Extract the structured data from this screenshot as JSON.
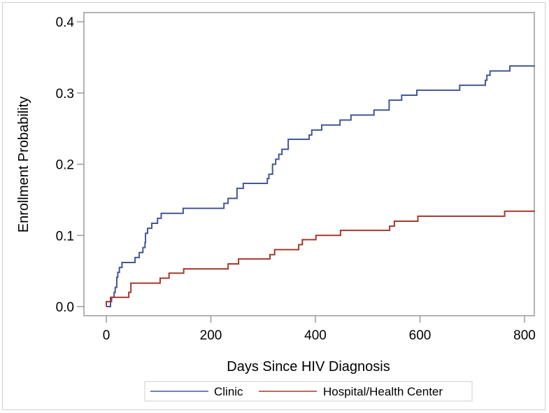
{
  "chart_data": {
    "type": "line",
    "step": true,
    "title": "",
    "xlabel": "Days Since HIV Diagnosis",
    "ylabel": "Enrollment Probability",
    "xlim": [
      -25,
      820
    ],
    "ylim": [
      -0.013,
      0.41
    ],
    "xticks": [
      0,
      200,
      400,
      600,
      800
    ],
    "xtick_labels": [
      "0",
      "200",
      "400",
      "600",
      "800"
    ],
    "yticks": [
      0.0,
      0.1,
      0.2,
      0.3,
      0.4
    ],
    "ytick_labels": [
      "0.0",
      "0.1",
      "0.2",
      "0.3",
      "0.4"
    ],
    "grid": false,
    "legend_position": "bottom",
    "series": [
      {
        "name": "Clinic",
        "color": "#445694",
        "x": [
          0,
          8,
          10,
          15,
          17,
          20,
          22,
          25,
          30,
          55,
          63,
          70,
          74,
          75,
          79,
          87,
          98,
          105,
          147,
          225,
          233,
          250,
          262,
          308,
          311,
          318,
          324,
          330,
          336,
          348,
          388,
          393,
          412,
          447,
          468,
          512,
          541,
          565,
          594,
          676,
          725,
          728,
          734,
          772,
          820
        ],
        "y": [
          0,
          0.007,
          0.013,
          0.02,
          0.027,
          0.041,
          0.048,
          0.055,
          0.062,
          0.069,
          0.076,
          0.083,
          0.09,
          0.103,
          0.11,
          0.117,
          0.124,
          0.131,
          0.138,
          0.145,
          0.152,
          0.166,
          0.173,
          0.18,
          0.186,
          0.2,
          0.207,
          0.214,
          0.221,
          0.235,
          0.241,
          0.248,
          0.255,
          0.262,
          0.269,
          0.276,
          0.29,
          0.297,
          0.304,
          0.311,
          0.318,
          0.325,
          0.331,
          0.338,
          0.338
        ]
      },
      {
        "name": "Hospital/Health Center",
        "color": "#A23A2E",
        "x": [
          0,
          0,
          8,
          43,
          47,
          103,
          120,
          148,
          233,
          253,
          313,
          322,
          368,
          375,
          401,
          448,
          542,
          551,
          596,
          762,
          820
        ],
        "y": [
          0,
          0.007,
          0.013,
          0.02,
          0.033,
          0.04,
          0.047,
          0.053,
          0.06,
          0.067,
          0.073,
          0.08,
          0.087,
          0.094,
          0.1,
          0.107,
          0.113,
          0.12,
          0.127,
          0.134,
          0.134
        ]
      }
    ]
  }
}
